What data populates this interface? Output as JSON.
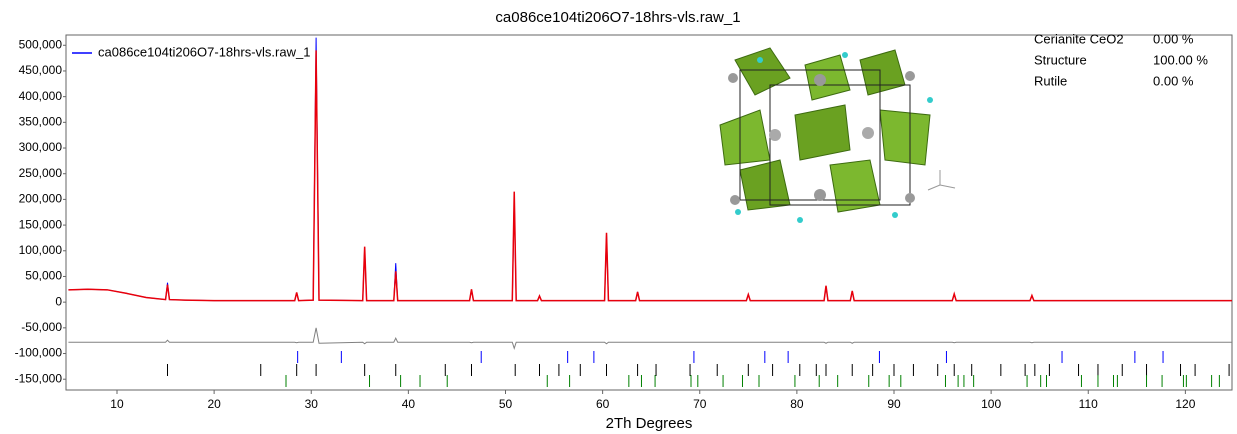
{
  "chart_data": {
    "type": "line",
    "title": "ca086ce104ti206O7-18hrs-vls.raw_1",
    "x_label": "2Th Degrees",
    "x": [
      5,
      7,
      9,
      11,
      13,
      15,
      15.2,
      15.4,
      17,
      20,
      25,
      28.3,
      28.5,
      28.7,
      30.2,
      30.5,
      30.8,
      35.3,
      35.5,
      35.7,
      38.5,
      38.7,
      38.9,
      46.3,
      46.5,
      46.7,
      50.7,
      50.9,
      51.1,
      53.3,
      53.5,
      53.7,
      60.2,
      60.4,
      60.6,
      63.4,
      63.6,
      63.8,
      74.8,
      75,
      75.2,
      82.8,
      83,
      83.2,
      85.5,
      85.7,
      85.9,
      96,
      96.2,
      96.4,
      104,
      104.2,
      104.4,
      124.8
    ],
    "series": [
      {
        "name": "ca086ce104ti206O7-18hrs-vls.raw_1",
        "color": "#0000ff",
        "values": [
          24000,
          25000,
          24000,
          17000,
          9000,
          5000,
          38000,
          5000,
          4000,
          3000,
          3000,
          3000,
          18000,
          3000,
          4000,
          515000,
          4000,
          3000,
          105000,
          3000,
          3000,
          76000,
          3000,
          3000,
          24000,
          3000,
          3000,
          205000,
          3000,
          3000,
          12000,
          3000,
          3000,
          132000,
          3000,
          3000,
          20000,
          3000,
          3000,
          15000,
          3000,
          3000,
          30000,
          3000,
          3000,
          20000,
          3000,
          3000,
          15000,
          3000,
          3000,
          12000,
          3000,
          3000
        ]
      },
      {
        "color": "#e8000b",
        "values": [
          24000,
          25000,
          24000,
          17000,
          9000,
          5000,
          34000,
          5000,
          4000,
          3000,
          3000,
          3000,
          19000,
          3000,
          4000,
          490000,
          4000,
          3000,
          108000,
          3000,
          3000,
          60000,
          3000,
          3000,
          25000,
          3000,
          3000,
          215000,
          3000,
          3000,
          12000,
          3000,
          3000,
          135000,
          3000,
          3000,
          20000,
          3000,
          3000,
          15000,
          3000,
          3000,
          32000,
          3000,
          3000,
          22000,
          3000,
          3000,
          16000,
          3000,
          3000,
          13000,
          3000,
          3000
        ]
      },
      {
        "color": "#808080",
        "values": [
          -78000,
          -78000,
          -78000,
          -78000,
          -78000,
          -78000,
          -74000,
          -78000,
          -78000,
          -78000,
          -78000,
          -78000,
          -79000,
          -78000,
          -78000,
          -50000,
          -80000,
          -78000,
          -81000,
          -78000,
          -78000,
          -70000,
          -78000,
          -78000,
          -79000,
          -78000,
          -78000,
          -90000,
          -78000,
          -78000,
          -78000,
          -78000,
          -78000,
          -81000,
          -78000,
          -78000,
          -78000,
          -78000,
          -78000,
          -78000,
          -78000,
          -78000,
          -80000,
          -78000,
          -78000,
          -80000,
          -78000,
          -78000,
          -79000,
          -78000,
          -78000,
          -79000,
          -78000,
          -78000
        ]
      }
    ],
    "phases": [
      {
        "name": "Cerianite CeO2",
        "color": "#0000ff",
        "value": 0,
        "value_label": "0.00 %",
        "ticks": [
          28.6,
          33.1,
          47.5,
          56.4,
          59.1,
          69.4,
          76.7,
          79.1,
          88.5,
          95.4,
          107.3,
          114.8,
          117.7
        ]
      },
      {
        "name": "Structure",
        "color": "#000000",
        "value": 100,
        "value_label": "100.00 %",
        "ticks": [
          15.2,
          24.8,
          28.5,
          30.5,
          35.5,
          38.7,
          43.8,
          46.5,
          51,
          53.5,
          55.5,
          57.7,
          60.4,
          63.6,
          65.5,
          69,
          71.8,
          75,
          77.5,
          80.3,
          82,
          83,
          85.7,
          87.8,
          90,
          92,
          94.5,
          96.2,
          98,
          101,
          103.5,
          104.5,
          106,
          109,
          111,
          113.5,
          116,
          119.5,
          121,
          124.5
        ]
      },
      {
        "name": "Rutile",
        "color": "#008000",
        "value": 0,
        "value_label": "0.00 %",
        "ticks": [
          27.4,
          36,
          39.2,
          41.2,
          44,
          54.3,
          56.6,
          62.7,
          64,
          65.4,
          69.1,
          69.8,
          72.4,
          74.4,
          76.1,
          79.8,
          82.3,
          84.2,
          87.4,
          89.5,
          90.7,
          95.3,
          96.6,
          97.2,
          98.2,
          103.7,
          105.1,
          105.7,
          109.3,
          111,
          112.6,
          113,
          116,
          117.6,
          119.8,
          120.1,
          122.7,
          123.5
        ]
      }
    ],
    "xlim": [
      4.75,
      124.8
    ],
    "xticks": [
      10,
      20,
      30,
      40,
      50,
      60,
      70,
      80,
      90,
      100,
      110,
      120
    ],
    "ylim": [
      -171000,
      520000
    ],
    "yticks": [
      {
        "value": -150000,
        "label": "-150,000"
      },
      {
        "value": -100000,
        "label": "-100,000"
      },
      {
        "value": -50000,
        "label": "-50,000"
      },
      0,
      {
        "value": 50000,
        "label": "50,000"
      },
      {
        "value": 100000,
        "label": "100,000"
      },
      {
        "value": 150000,
        "label": "150,000"
      },
      {
        "value": 200000,
        "label": "200,000"
      },
      {
        "value": 250000,
        "label": "250,000"
      },
      {
        "value": 300000,
        "label": "300,000"
      },
      {
        "value": 350000,
        "label": "350,000"
      },
      {
        "value": 400000,
        "label": "400,000"
      },
      {
        "value": 450000,
        "label": "450,000"
      },
      {
        "value": 500000,
        "label": "500,000"
      }
    ]
  }
}
